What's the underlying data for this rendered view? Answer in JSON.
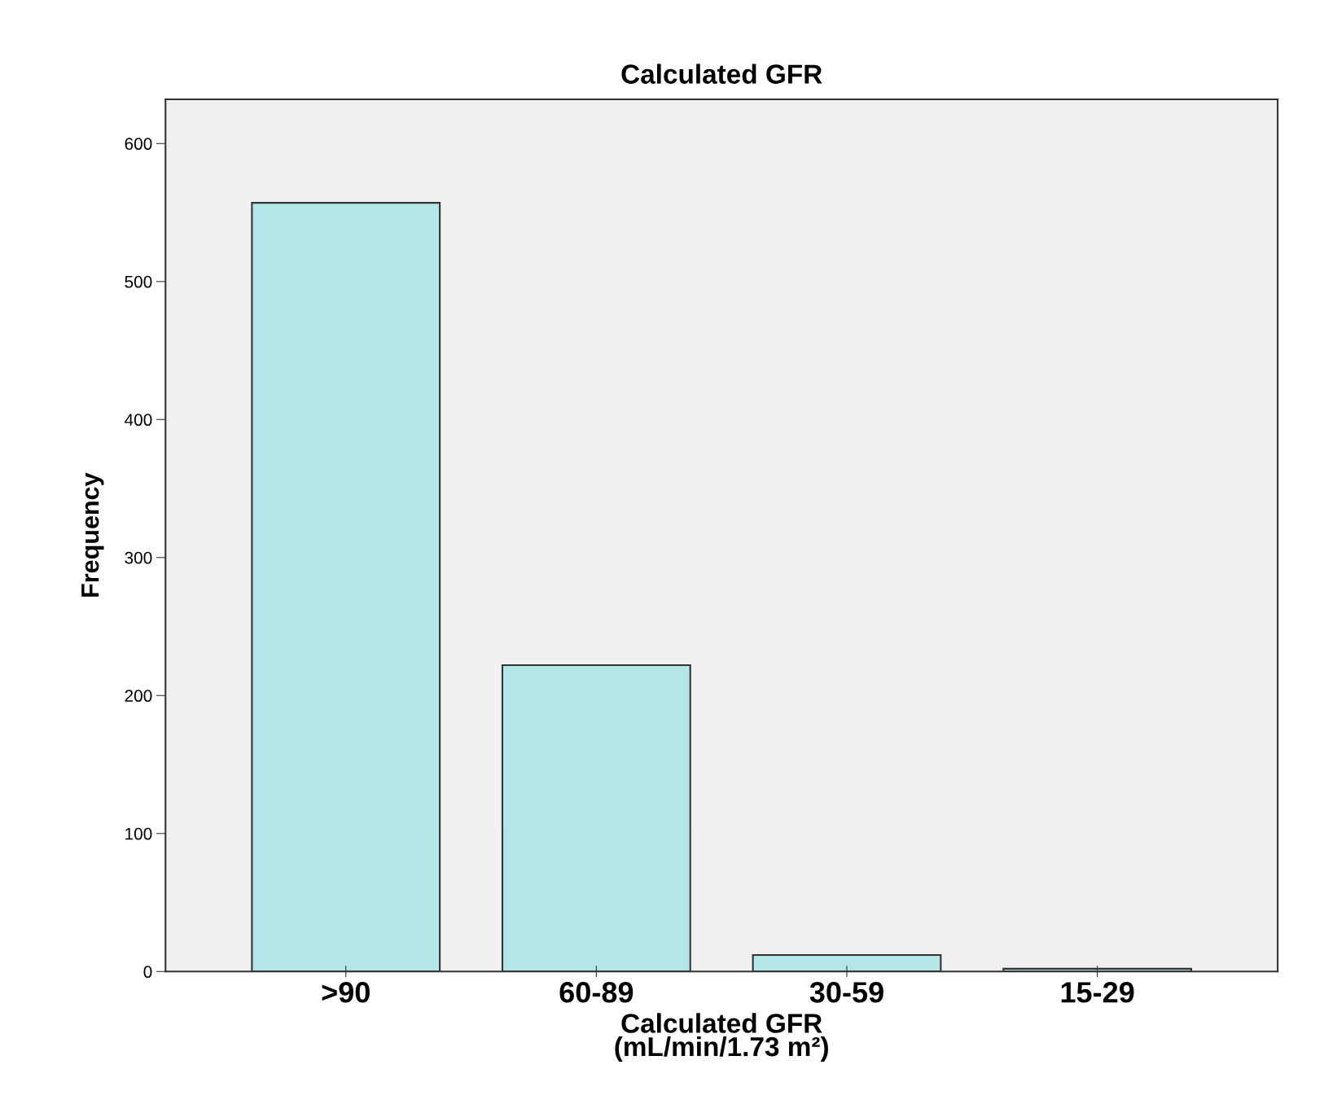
{
  "chart_data": {
    "type": "bar",
    "title": "Calculated GFR",
    "xlabel": "Calculated GFR\n(mL/min/1.73 m²)",
    "ylabel": "Frequency",
    "categories": [
      ">90",
      "60-89",
      "30-59",
      "15-29"
    ],
    "values": [
      557,
      222,
      12,
      2
    ],
    "color": "#b3e6e6",
    "ylim": [
      0,
      632
    ],
    "yticks": [
      0,
      100,
      200,
      300,
      400,
      500,
      600
    ],
    "grid": false,
    "legend": false
  }
}
